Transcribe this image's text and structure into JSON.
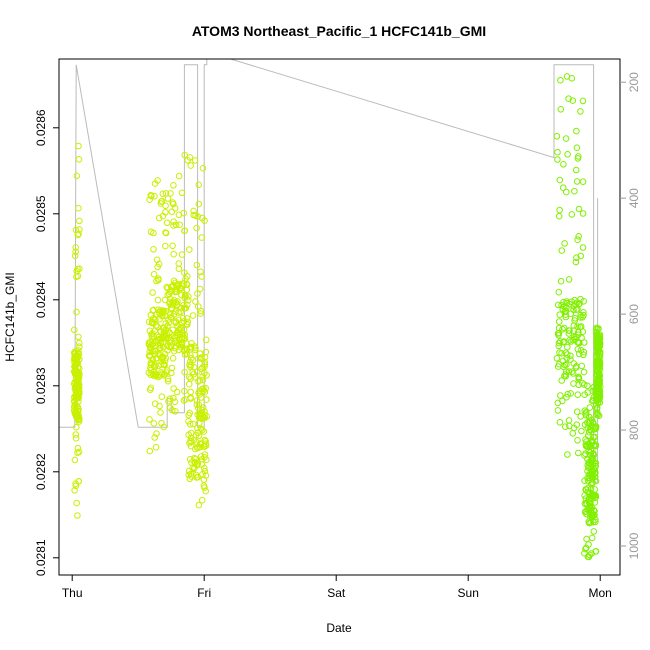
{
  "chart_data": {
    "type": "scatter",
    "title": "ATOM3 Northeast_Pacific_1 HCFC141b_GMI",
    "xlabel": "Date",
    "ylabel": "HCFC141b_GMI",
    "x_ticks": [
      "Thu",
      "Fri",
      "Sat",
      "Sun",
      "Mon"
    ],
    "x_range": [
      -0.1,
      4.15
    ],
    "y_range": [
      0.02808,
      0.02868
    ],
    "y_ticks": [
      0.0281,
      0.0282,
      0.0283,
      0.0284,
      0.0285,
      0.0286
    ],
    "y_tick_labels": [
      "0.0281",
      "0.0282",
      "0.0283",
      "0.0284",
      "0.0285",
      "0.0286"
    ],
    "y2_range": [
      1050,
      160
    ],
    "y2_ticks": [
      200,
      400,
      600,
      800,
      1000
    ],
    "y2_tick_labels": [
      "200",
      "400",
      "600",
      "800",
      "1000"
    ],
    "grid": false,
    "series": [
      {
        "marker": "open-circle",
        "color": "#c8f000",
        "clusters": [
          {
            "x": [
              0.015,
              0.055
            ],
            "y": [
              0.02814,
              0.02858
            ],
            "dense": [
              0.02826,
              0.02834
            ]
          },
          {
            "x": [
              0.58,
              0.72
            ],
            "y": [
              0.02822,
              0.02855
            ],
            "dense": [
              0.02831,
              0.02839
            ]
          },
          {
            "x": [
              0.72,
              0.88
            ],
            "y": [
              0.02826,
              0.02857
            ],
            "dense": [
              0.02834,
              0.02842
            ]
          },
          {
            "x": [
              0.88,
              1.02
            ],
            "y": [
              0.02815,
              0.02857
            ],
            "dense": [
              0.02819,
              0.02835
            ]
          }
        ]
      },
      {
        "marker": "open-circle",
        "color": "#80f000",
        "clusters": [
          {
            "x": [
              3.67,
              3.88
            ],
            "y": [
              0.02822,
              0.02866
            ],
            "dense": [
              0.0283,
              0.0284
            ]
          },
          {
            "x": [
              3.88,
              3.97
            ],
            "y": [
              0.0281,
              0.0283
            ],
            "dense": [
              0.02814,
              0.02826
            ]
          },
          {
            "x": [
              3.97,
              4.0
            ],
            "y": [
              0.02826,
              0.02837
            ],
            "dense": [
              0.02828,
              0.02836
            ]
          }
        ]
      }
    ],
    "secondary_line": {
      "color": "#bbbbbb",
      "x": [
        -0.1,
        0.02,
        0.02,
        0.03,
        0.5,
        0.72,
        0.72,
        0.75,
        0.75,
        0.85,
        0.85,
        0.95,
        0.95,
        1.0,
        1.0,
        1.02,
        1.02,
        1.2,
        3.65,
        3.65,
        3.7,
        3.95,
        3.95,
        3.98,
        3.98
      ],
      "y": [
        795,
        795,
        795,
        170,
        795,
        795,
        745,
        745,
        770,
        770,
        170,
        170,
        795,
        795,
        170,
        170,
        140,
        140,
        330,
        170,
        170,
        170,
        890,
        890,
        400
      ]
    }
  }
}
